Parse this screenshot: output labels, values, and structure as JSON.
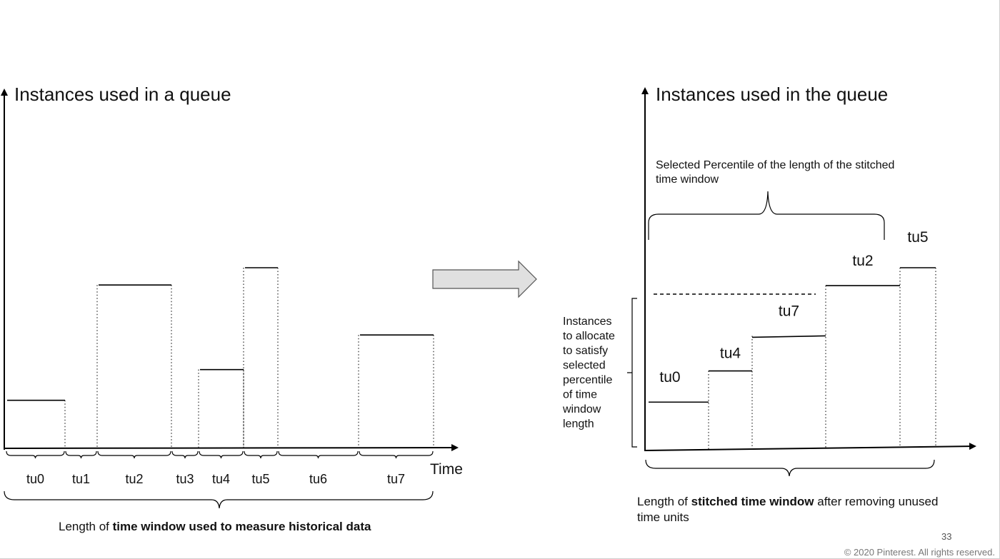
{
  "left_diagram": {
    "title": "Instances used in a queue",
    "x_axis_label": "Time",
    "caption_prefix": "Length of ",
    "caption_bold": "time window used to measure historical data",
    "time_units": [
      {
        "label": "tu0",
        "level": 0.25
      },
      {
        "label": "tu1",
        "level": 0
      },
      {
        "label": "tu2",
        "level": 0.85
      },
      {
        "label": "tu3",
        "level": 0
      },
      {
        "label": "tu4",
        "level": 0.41
      },
      {
        "label": "tu5",
        "level": 0.94
      },
      {
        "label": "tu6",
        "level": 0
      },
      {
        "label": "tu7",
        "level": 0.59
      }
    ]
  },
  "arrow": {
    "icon": "right-arrow-icon",
    "fill": "#e0e0e0"
  },
  "right_diagram": {
    "title": "Instances used in the queue",
    "percentile_label_line1": "Selected Percentile of the length of the stitched",
    "percentile_label_line2": "time window",
    "side_label_lines": [
      "Instances",
      "to allocate",
      "to satisfy",
      "selected",
      "percentile",
      "of time",
      "window",
      "length"
    ],
    "caption_prefix": "Length of ",
    "caption_bold": "stitched time window",
    "caption_suffix": " after removing unused",
    "caption_line2": "time units",
    "stitched_units": [
      {
        "label": "tu0",
        "level": 0.25
      },
      {
        "label": "tu4",
        "level": 0.41
      },
      {
        "label": "tu7",
        "level": 0.59
      },
      {
        "label": "tu2",
        "level": 0.85
      },
      {
        "label": "tu5",
        "level": 0.94
      }
    ]
  },
  "footer": {
    "page_number": "33",
    "copyright": "© 2020 Pinterest. All rights reserved."
  }
}
